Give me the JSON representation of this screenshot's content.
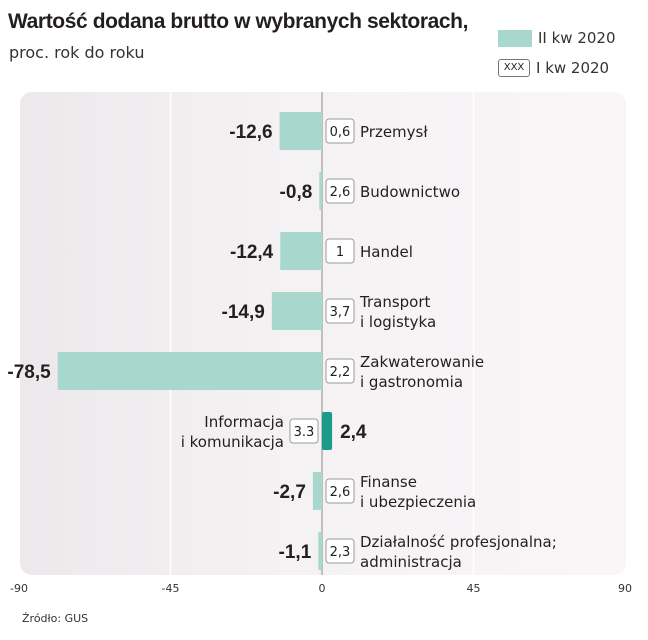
{
  "title": "Wartość dodana brutto w wybranych sektorach,",
  "subtitle": "proc. rok do roku",
  "legend": {
    "q2_label": "II kw 2020",
    "q1_box": "XXX",
    "q1_label": "I kw 2020",
    "q2_color": "#a7d7cd",
    "highlight_color": "#1a9c8a"
  },
  "source": "Źródło: GUS",
  "chart_data": {
    "type": "bar",
    "orientation": "horizontal",
    "categories": [
      [
        "Przemysł"
      ],
      [
        "Budownictwo"
      ],
      [
        "Handel"
      ],
      [
        "Transport",
        "i logistyka"
      ],
      [
        "Zakwaterowanie",
        "i gastronomia"
      ],
      [
        "Informacja",
        "i komunikacja"
      ],
      [
        "Finanse",
        "i ubezpieczenia"
      ],
      [
        "Działalność profesjonalna;",
        "administracja"
      ]
    ],
    "series": [
      {
        "name": "II kw 2020",
        "values": [
          -12.6,
          -0.8,
          -12.4,
          -14.9,
          -78.5,
          2.4,
          -2.7,
          -1.1
        ],
        "labels": [
          "-12,6",
          "-0,8",
          "-12,4",
          "-14,9",
          "-78,5",
          "2,4",
          "-2,7",
          "-1,1"
        ]
      },
      {
        "name": "I kw 2020",
        "values": [
          0.6,
          2.6,
          1,
          3.7,
          2.2,
          3.3,
          2.6,
          2.3
        ],
        "labels": [
          "0,6",
          "2,6",
          "1",
          "3,7",
          "2,2",
          "3.3",
          "2,6",
          "2,3"
        ]
      }
    ],
    "xlim": [
      -90,
      90
    ],
    "xticks": [
      -90,
      -45,
      0,
      45,
      90
    ],
    "xtick_labels": [
      "-90",
      "-45",
      "0",
      "45",
      "90"
    ],
    "grid": true
  }
}
